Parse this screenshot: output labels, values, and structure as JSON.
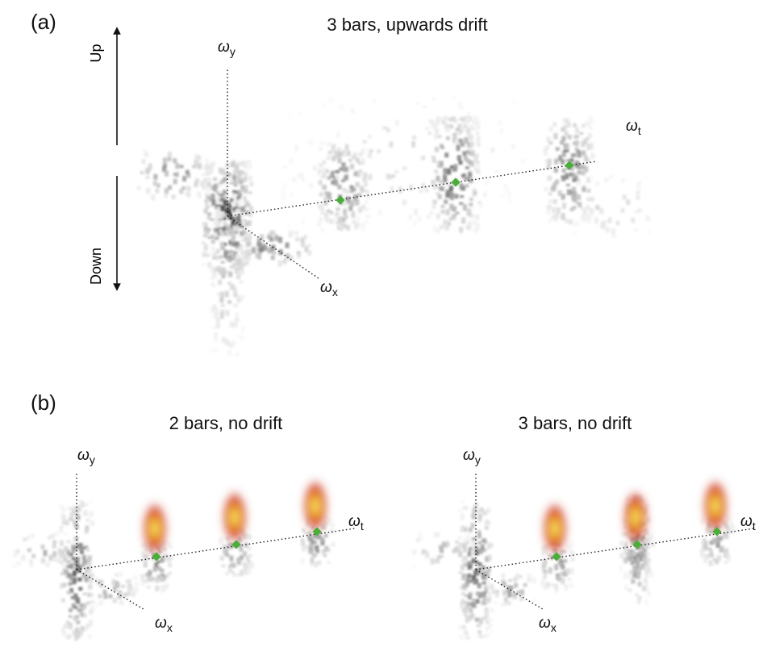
{
  "panel_a": {
    "label": "(a)",
    "title": "3 bars, upwards drift",
    "up": "Up",
    "down": "Down",
    "axes": {
      "y": {
        "symbol": "ω",
        "sub": "y"
      },
      "t": {
        "symbol": "ω",
        "sub": "t"
      },
      "x": {
        "symbol": "ω",
        "sub": "x"
      }
    }
  },
  "panel_b": {
    "label": "(b)",
    "left": {
      "title": "2 bars, no drift",
      "axes": {
        "y": {
          "symbol": "ω",
          "sub": "y"
        },
        "t": {
          "symbol": "ω",
          "sub": "t"
        },
        "x": {
          "symbol": "ω",
          "sub": "x"
        }
      }
    },
    "right": {
      "title": "3 bars, no drift",
      "axes": {
        "y": {
          "symbol": "ω",
          "sub": "y"
        },
        "t": {
          "symbol": "ω",
          "sub": "t"
        },
        "x": {
          "symbol": "ω",
          "sub": "x"
        }
      }
    }
  }
}
